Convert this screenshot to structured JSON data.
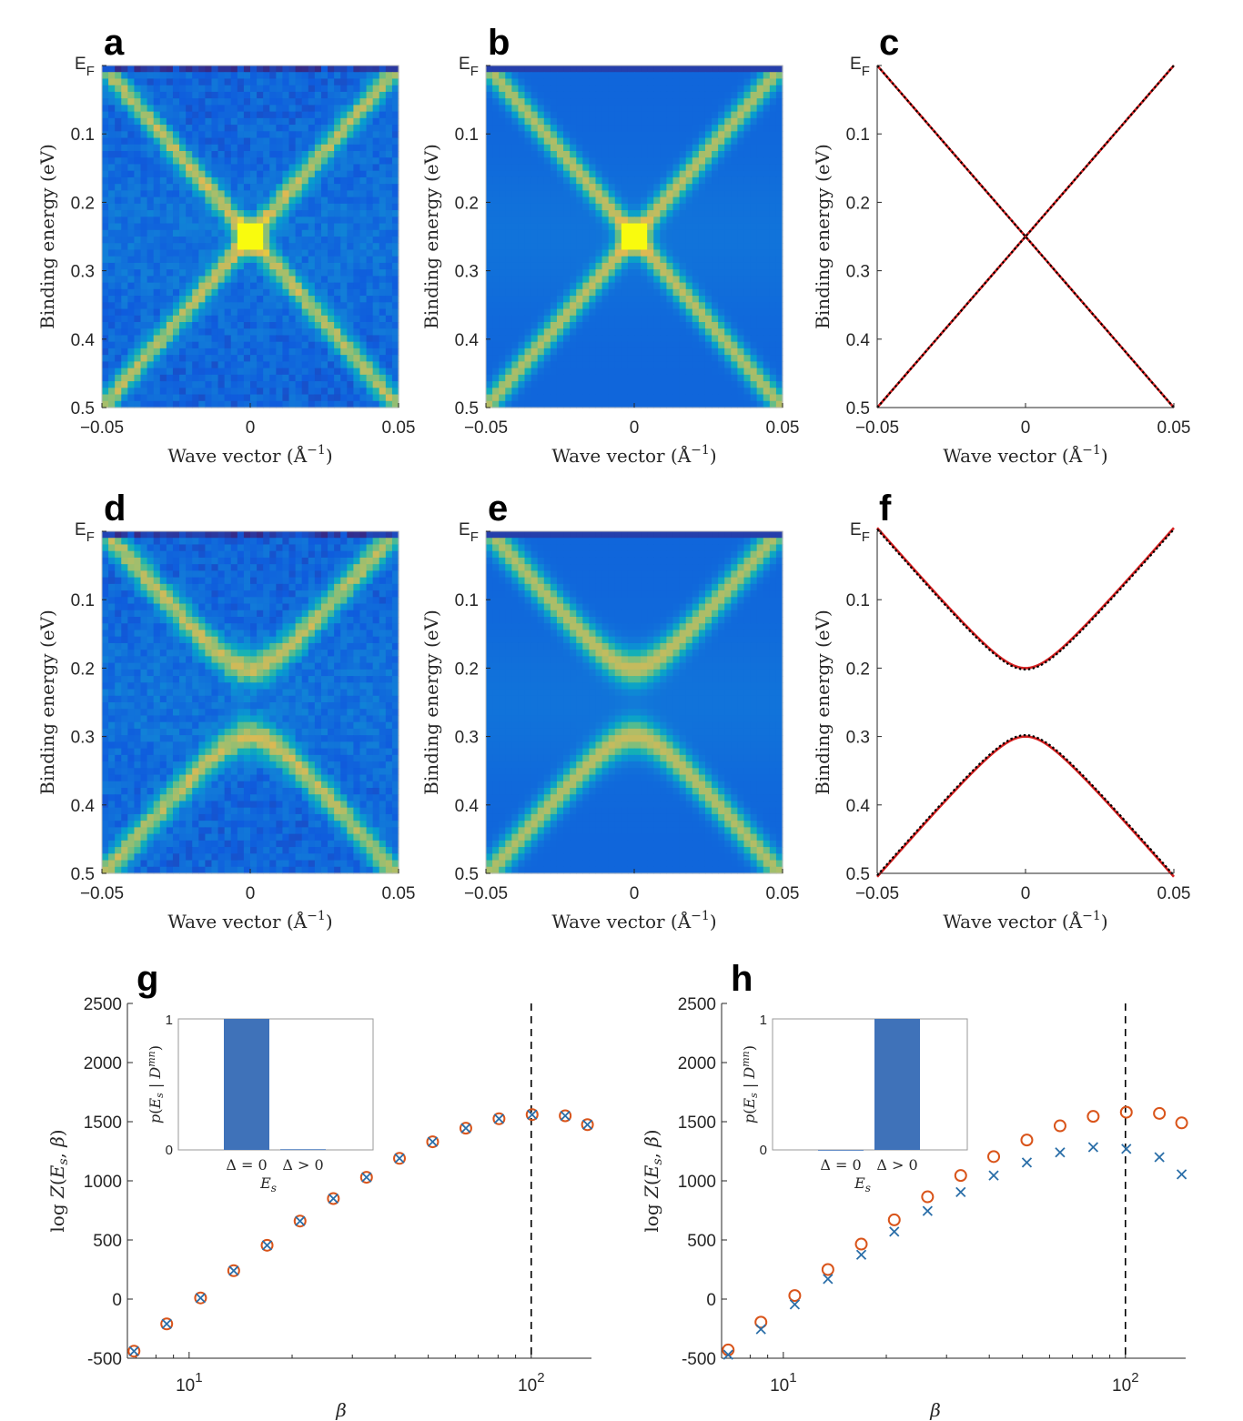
{
  "panel_letters": [
    "a",
    "b",
    "c",
    "d",
    "e",
    "f",
    "g",
    "h"
  ],
  "chart_data": [
    {
      "panel": "a",
      "type": "heatmap",
      "xlabel": "Wave vector (Å$^{-1}$)",
      "ylabel": "Binding energy (eV)",
      "xlim": [
        -0.05,
        0.05
      ],
      "ylim": [
        0,
        0.5
      ],
      "xticks": [
        "−0.05",
        "0",
        "0.05"
      ],
      "yticks": [
        "E_F",
        "0.1",
        "0.2",
        "0.3",
        "0.4",
        "0.5"
      ],
      "description_of_data": "two linear crossing bands, gap 0",
      "crossing_energy": 0.25,
      "gap": 0.0,
      "colormap": "parula",
      "noise": true
    },
    {
      "panel": "b",
      "type": "heatmap",
      "xlabel": "Wave vector (Å$^{-1}$)",
      "ylabel": "Binding energy (eV)",
      "xlim": [
        -0.05,
        0.05
      ],
      "ylim": [
        0,
        0.5
      ],
      "xticks": [
        "−0.05",
        "0",
        "0.05"
      ],
      "yticks": [
        "E_F",
        "0.1",
        "0.2",
        "0.3",
        "0.4",
        "0.5"
      ],
      "crossing_energy": 0.25,
      "gap": 0.0,
      "colormap": "parula",
      "noise": false
    },
    {
      "panel": "c",
      "type": "line",
      "xlabel": "Wave vector (Å$^{-1}$)",
      "ylabel": "Binding energy (eV)",
      "xlim": [
        -0.05,
        0.05
      ],
      "ylim": [
        0,
        0.5
      ],
      "xticks": [
        "−0.05",
        "0",
        "0.05"
      ],
      "yticks": [
        "E_F",
        "0.1",
        "0.2",
        "0.3",
        "0.4",
        "0.5"
      ],
      "crossing_energy": 0.25,
      "gap": 0.0,
      "series": [
        {
          "style": "solid",
          "color": "#d62020"
        },
        {
          "style": "dotted",
          "color": "#000000"
        }
      ]
    },
    {
      "panel": "d",
      "type": "heatmap",
      "xlabel": "Wave vector (Å$^{-1}$)",
      "ylabel": "Binding energy (eV)",
      "xlim": [
        -0.05,
        0.05
      ],
      "ylim": [
        0,
        0.5
      ],
      "xticks": [
        "−0.05",
        "0",
        "0.05"
      ],
      "yticks": [
        "E_F",
        "0.1",
        "0.2",
        "0.3",
        "0.4",
        "0.5"
      ],
      "crossing_energy": 0.25,
      "gap": 0.1,
      "colormap": "parula",
      "noise": true
    },
    {
      "panel": "e",
      "type": "heatmap",
      "xlabel": "Wave vector (Å$^{-1}$)",
      "ylabel": "Binding energy (eV)",
      "xlim": [
        -0.05,
        0.05
      ],
      "ylim": [
        0,
        0.5
      ],
      "xticks": [
        "−0.05",
        "0",
        "0.05"
      ],
      "yticks": [
        "E_F",
        "0.1",
        "0.2",
        "0.3",
        "0.4",
        "0.5"
      ],
      "crossing_energy": 0.25,
      "gap": 0.1,
      "colormap": "parula",
      "noise": false
    },
    {
      "panel": "f",
      "type": "line",
      "xlabel": "Wave vector (Å$^{-1}$)",
      "ylabel": "Binding energy (eV)",
      "xlim": [
        -0.05,
        0.05
      ],
      "ylim": [
        0,
        0.5
      ],
      "xticks": [
        "−0.05",
        "0",
        "0.05"
      ],
      "yticks": [
        "E_F",
        "0.1",
        "0.2",
        "0.3",
        "0.4",
        "0.5"
      ],
      "crossing_energy": 0.25,
      "gap": 0.1,
      "series": [
        {
          "style": "solid",
          "color": "#d62020"
        },
        {
          "style": "dotted",
          "color": "#000000"
        }
      ]
    },
    {
      "panel": "g",
      "type": "scatter",
      "xscale": "log",
      "xlabel": "β",
      "ylabel": "log Z(E_s, β)",
      "xlim": [
        6.6,
        150
      ],
      "ylim": [
        -500,
        2500
      ],
      "yticks": [
        "-500",
        "0",
        "500",
        "1000",
        "1500",
        "2000",
        "2500"
      ],
      "xticks": [
        {
          "value": 10,
          "base": "10",
          "exp": "1"
        },
        {
          "value": 100,
          "base": "10",
          "exp": "2"
        }
      ],
      "vline": 100,
      "x": [
        6.9,
        8.6,
        10.8,
        13.5,
        16.9,
        21.1,
        26.4,
        33.0,
        41.2,
        51.5,
        64.4,
        80.5,
        100.6,
        125.7,
        146.0
      ],
      "series": [
        {
          "marker": "circle",
          "color": "#d9541a",
          "values": [
            -440,
            -210,
            10,
            240,
            455,
            660,
            850,
            1030,
            1190,
            1330,
            1445,
            1525,
            1560,
            1550,
            1475
          ]
        },
        {
          "marker": "x",
          "color": "#2a6ea8",
          "values": [
            -440,
            -210,
            10,
            240,
            455,
            660,
            850,
            1030,
            1190,
            1330,
            1445,
            1525,
            1560,
            1550,
            1475
          ]
        }
      ],
      "inset": {
        "type": "bar",
        "categories": [
          "Δ = 0",
          "Δ > 0"
        ],
        "values": [
          1,
          0.005
        ],
        "xlabel": "E_s",
        "ylabel": "p(E_s | D^mn)",
        "yticks": [
          "0",
          "1"
        ],
        "color": "#3f72b9"
      }
    },
    {
      "panel": "h",
      "type": "scatter",
      "xscale": "log",
      "xlabel": "β",
      "ylabel": "log Z(E_s, β)",
      "xlim": [
        6.6,
        150
      ],
      "ylim": [
        -500,
        2500
      ],
      "yticks": [
        "-500",
        "0",
        "500",
        "1000",
        "1500",
        "2000",
        "2500"
      ],
      "xticks": [
        {
          "value": 10,
          "base": "10",
          "exp": "1"
        },
        {
          "value": 100,
          "base": "10",
          "exp": "2"
        }
      ],
      "vline": 100,
      "x": [
        6.9,
        8.6,
        10.8,
        13.5,
        16.9,
        21.1,
        26.4,
        33.0,
        41.2,
        51.5,
        64.4,
        80.5,
        100.6,
        125.7,
        146.0
      ],
      "series": [
        {
          "marker": "circle",
          "color": "#d9541a",
          "values": [
            -430,
            -195,
            30,
            250,
            465,
            670,
            865,
            1045,
            1205,
            1345,
            1465,
            1545,
            1580,
            1570,
            1490
          ]
        },
        {
          "marker": "x",
          "color": "#2a6ea8",
          "values": [
            -470,
            -255,
            -45,
            170,
            375,
            570,
            745,
            905,
            1045,
            1155,
            1240,
            1285,
            1270,
            1200,
            1055
          ]
        }
      ],
      "inset": {
        "type": "bar",
        "categories": [
          "Δ = 0",
          "Δ > 0"
        ],
        "values": [
          0,
          1
        ],
        "xlabel": "E_s",
        "ylabel": "p(E_s | D^mn)",
        "yticks": [
          "0",
          "1"
        ],
        "color": "#3f72b9"
      }
    }
  ]
}
